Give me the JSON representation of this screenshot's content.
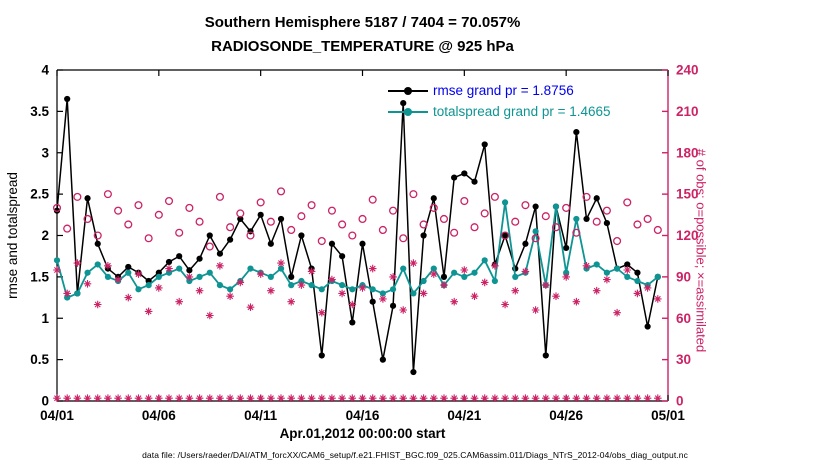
{
  "figure": {
    "title_line1": "Southern Hemisphere 5187 / 7404 = 70.057%",
    "title_line2": "RADIOSONDE_TEMPERATURE @ 925 hPa",
    "xlabel": "Apr.01,2012 00:00:00 start",
    "ylabel_left": "rmse and totalspread",
    "ylabel_right": "# of obs: o=possible; ×=assimilated",
    "caption": "data file: /Users/raeder/DAI/ATM_forcXX/CAM6_setup/f.e21.FHIST_BGC.f09_025.CAM6assim.011/Diags_NTrS_2012-04/obs_diag_output.nc"
  },
  "legend": {
    "rmse_label": "rmse grand pr = 1.8756",
    "totalspread_label": "totalspread grand pr = 1.4665",
    "rmse_text_color": "#0000ee",
    "totalspread_text_color": "#0f9494"
  },
  "colors": {
    "rmse_line": "#000000",
    "totalspread_line": "#0f9494",
    "obs_crimson": "#cc2266",
    "axis_black": "#000000"
  },
  "chart_data": {
    "type": "line",
    "title": "Southern Hemisphere 5187 / 7404 = 70.057% | RADIOSONDE_TEMPERATURE @ 925 hPa",
    "xlabel": "Apr.01,2012 00:00:00 start",
    "ylabel_left": "rmse and totalspread",
    "ylabel_right": "# of obs: o=possible; x=assimilated",
    "x_axis": {
      "min": 0,
      "max": 30,
      "tick_days": [
        0,
        5,
        10,
        15,
        20,
        25,
        30
      ],
      "tick_labels": [
        "04/01",
        "04/06",
        "04/11",
        "04/16",
        "04/21",
        "04/26",
        "05/01"
      ]
    },
    "left_axis": {
      "min": 0,
      "max": 4,
      "ticks": [
        0,
        0.5,
        1,
        1.5,
        2,
        2.5,
        3,
        3.5,
        4
      ],
      "tick_labels": [
        "0",
        "0.5",
        "1",
        "1.5",
        "2",
        "2.5",
        "3",
        "3.5",
        "4"
      ]
    },
    "right_axis": {
      "min": 0,
      "max": 240,
      "ticks": [
        0,
        30,
        60,
        90,
        120,
        150,
        180,
        210,
        240
      ],
      "tick_labels": [
        "0",
        "30",
        "60",
        "90",
        "120",
        "150",
        "180",
        "210",
        "240"
      ]
    },
    "x_days": [
      0,
      0.5,
      1,
      1.5,
      2,
      2.5,
      3,
      3.5,
      4,
      4.5,
      5,
      5.5,
      6,
      6.5,
      7,
      7.5,
      8,
      8.5,
      9,
      9.5,
      10,
      10.5,
      11,
      11.5,
      12,
      12.5,
      13,
      13.5,
      14,
      14.5,
      15,
      15.5,
      16,
      16.5,
      17,
      17.5,
      18,
      18.5,
      19,
      19.5,
      20,
      20.5,
      21,
      21.5,
      22,
      22.5,
      23,
      23.5,
      24,
      24.5,
      25,
      25.5,
      26,
      26.5,
      27,
      27.5,
      28,
      28.5,
      29,
      29.5
    ],
    "series": [
      {
        "name": "rmse",
        "axis": "left",
        "color": "#000000",
        "marker": "filled-circle",
        "line": true,
        "width": 1.5,
        "grand_prior_mean": 1.8756,
        "values": [
          2.3,
          3.65,
          1.3,
          2.45,
          1.9,
          1.6,
          1.5,
          1.62,
          1.55,
          1.45,
          1.55,
          1.68,
          1.75,
          1.58,
          1.72,
          2.0,
          1.78,
          1.95,
          2.2,
          2.05,
          2.25,
          1.9,
          2.2,
          1.5,
          2.0,
          1.6,
          0.55,
          1.9,
          1.75,
          0.95,
          1.9,
          1.2,
          0.5,
          1.15,
          3.6,
          0.35,
          2.0,
          2.45,
          1.5,
          2.7,
          2.75,
          2.65,
          3.1,
          1.65,
          2.0,
          1.6,
          1.9,
          2.35,
          0.55,
          2.35,
          1.85,
          3.25,
          2.2,
          2.45,
          2.15,
          1.6,
          1.65,
          1.55,
          0.9,
          1.5
        ]
      },
      {
        "name": "totalspread",
        "axis": "left",
        "color": "#0f9494",
        "marker": "filled-circle",
        "line": true,
        "width": 1.8,
        "grand_prior_mean": 1.4665,
        "values": [
          1.7,
          1.25,
          1.3,
          1.55,
          1.65,
          1.5,
          1.45,
          1.55,
          1.35,
          1.4,
          1.5,
          1.55,
          1.6,
          1.45,
          1.5,
          1.55,
          1.4,
          1.35,
          1.45,
          1.6,
          1.55,
          1.5,
          1.6,
          1.4,
          1.45,
          1.4,
          1.35,
          1.45,
          1.4,
          1.35,
          1.4,
          1.35,
          1.3,
          1.35,
          1.6,
          1.3,
          1.45,
          1.6,
          1.4,
          1.55,
          1.5,
          1.55,
          1.7,
          1.45,
          2.4,
          1.5,
          1.55,
          2.05,
          1.4,
          2.35,
          1.55,
          2.2,
          1.6,
          1.65,
          1.55,
          1.6,
          1.5,
          1.45,
          1.4,
          1.5
        ]
      },
      {
        "name": "possible-obs",
        "axis": "right",
        "color": "#cc2266",
        "marker": "open-circle",
        "line": false,
        "values": [
          140,
          125,
          148,
          132,
          120,
          150,
          138,
          128,
          142,
          118,
          135,
          145,
          122,
          140,
          130,
          112,
          148,
          126,
          136,
          120,
          144,
          130,
          152,
          124,
          134,
          142,
          116,
          138,
          128,
          120,
          132,
          146,
          124,
          138,
          118,
          150,
          128,
          140,
          132,
          122,
          145,
          126,
          136,
          148,
          120,
          130,
          142,
          118,
          134,
          126,
          140,
          122,
          148,
          130,
          138,
          116,
          144,
          128,
          132,
          124
        ]
      },
      {
        "name": "assimilated-obs",
        "axis": "right",
        "color": "#cc2266",
        "marker": "asterisk",
        "line": false,
        "values": [
          95,
          78,
          100,
          85,
          70,
          98,
          88,
          75,
          92,
          65,
          82,
          96,
          72,
          90,
          80,
          62,
          98,
          76,
          86,
          68,
          92,
          80,
          100,
          72,
          84,
          94,
          64,
          88,
          78,
          70,
          82,
          96,
          74,
          90,
          66,
          100,
          78,
          92,
          84,
          72,
          95,
          76,
          86,
          98,
          70,
          80,
          94,
          66,
          84,
          76,
          90,
          72,
          98,
          80,
          88,
          64,
          95,
          78,
          82,
          74
        ]
      },
      {
        "name": "obs-baseline-row",
        "axis": "right",
        "color": "#cc2266",
        "marker": "asterisk",
        "line": false,
        "values": [
          2,
          2,
          2,
          2,
          2,
          2,
          2,
          2,
          2,
          2,
          2,
          2,
          2,
          2,
          2,
          2,
          2,
          2,
          2,
          2,
          2,
          2,
          2,
          2,
          2,
          2,
          2,
          2,
          2,
          2,
          2,
          2,
          2,
          2,
          2,
          2,
          2,
          2,
          2,
          2,
          2,
          2,
          2,
          2,
          2,
          2,
          2,
          2,
          2,
          2,
          2,
          2,
          2,
          2,
          2,
          2,
          2,
          2,
          2,
          2
        ]
      }
    ]
  }
}
